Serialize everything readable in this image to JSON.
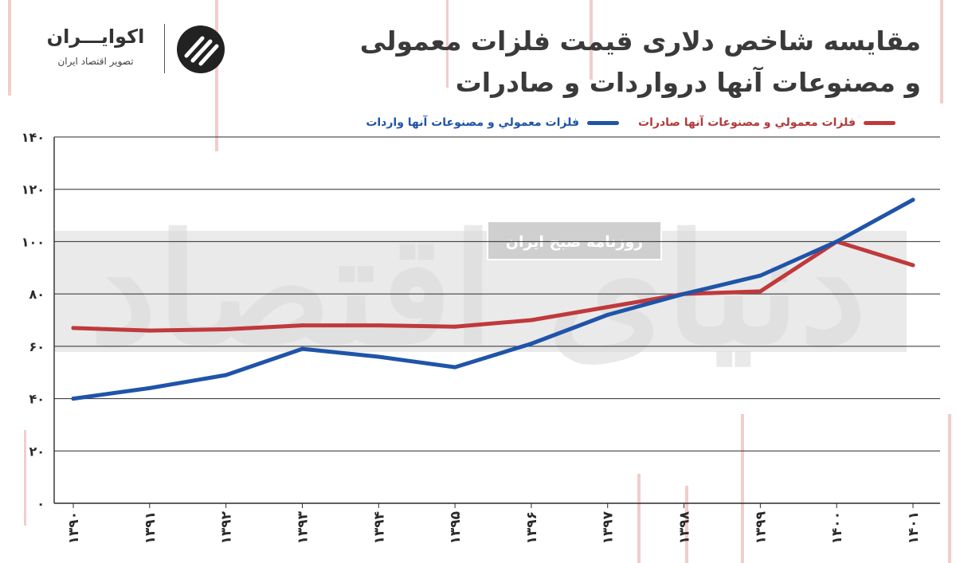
{
  "header": {
    "title_line1": "مقایسه شاخص دلاری قیمت فلزات معمولی",
    "title_line2": "و مصنوعات آنها درواردات و صادرات"
  },
  "logo": {
    "name": "اکوایـــران",
    "tagline": "تصویر اقتصاد ایران"
  },
  "watermark": {
    "brand": "دنیای اقتصاد",
    "band_text": "روزنامه صبح ایران"
  },
  "colors": {
    "exports": "#c0393b",
    "imports": "#1f54a8",
    "grid": "#2a2a2a",
    "background_stripes": "#f2c9c9"
  },
  "chart_data": {
    "type": "line",
    "title": "مقایسه شاخص دلاری قیمت فلزات معمولی و مصنوعات آنها درواردات و صادرات",
    "categories": [
      "۱۳۹۰",
      "۱۳۹۱",
      "۱۳۹۲",
      "۱۳۹۳",
      "۱۳۹۴",
      "۱۳۹۵",
      "۱۳۹۶",
      "۱۳۹۷",
      "۱۳۹۸",
      "۱۳۹۹",
      "۱۴۰۰",
      "۱۴۰۱"
    ],
    "series": [
      {
        "name": "فلزات معمولي و مصنوعات آنها صادرات",
        "color": "#c0393b",
        "values": [
          67,
          66,
          66.5,
          68,
          68,
          67.5,
          70,
          75,
          80,
          81,
          100,
          91
        ]
      },
      {
        "name": "فلزات معمولي و مصنوعات آنها واردات",
        "color": "#1f54a8",
        "values": [
          40,
          44,
          49,
          59,
          56,
          52,
          61,
          72,
          80,
          87,
          100,
          116
        ]
      }
    ],
    "ylim": [
      0,
      140
    ],
    "yticks": [
      0,
      20,
      40,
      60,
      80,
      100,
      120,
      140
    ],
    "ytick_labels": [
      "۰",
      "۲۰",
      "۴۰",
      "۶۰",
      "۸۰",
      "۱۰۰",
      "۱۲۰",
      "۱۴۰"
    ],
    "grid": true,
    "legend": "top-right"
  }
}
